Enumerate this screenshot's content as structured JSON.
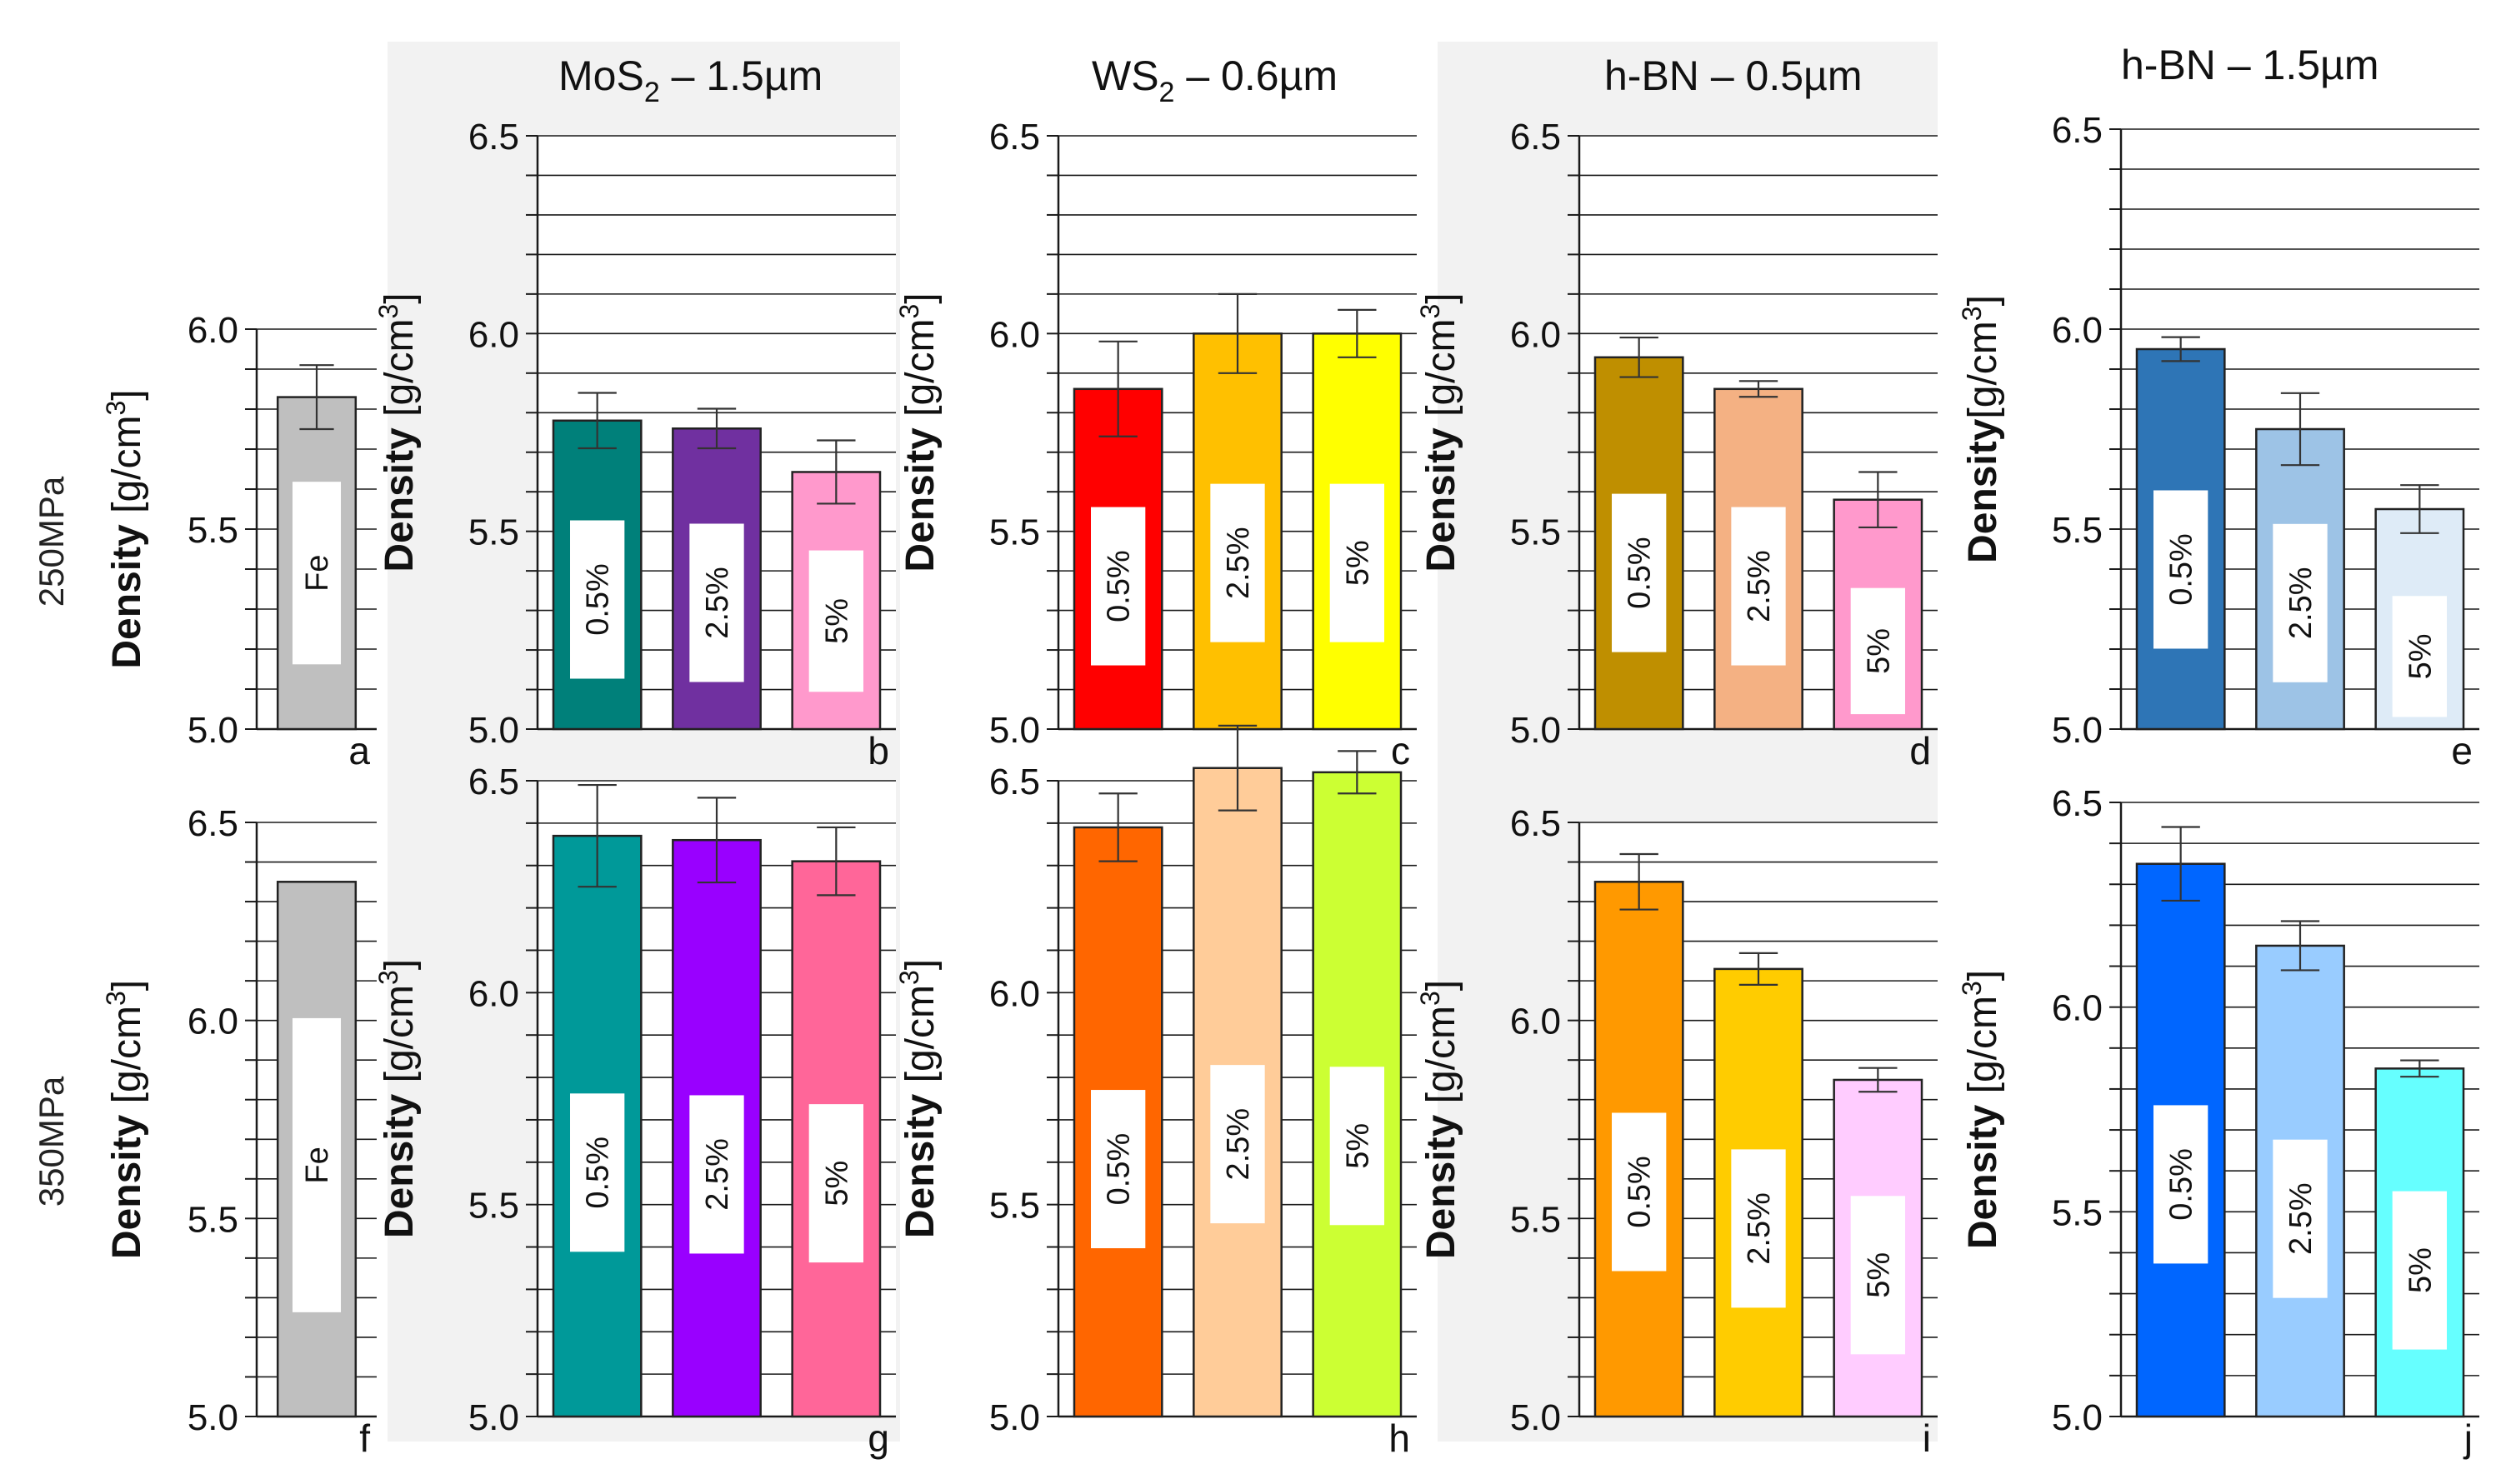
{
  "figure": {
    "row_labels": [
      "250MPa",
      "350MPa"
    ],
    "column_titles": [
      {
        "base": "MoS",
        "sub": "2",
        "rest": " – 1.5µm"
      },
      {
        "base": "WS",
        "sub": "2",
        "rest": " – 0.6µm"
      },
      {
        "base": "h-BN",
        "sub": "",
        "rest": " – 0.5µm"
      },
      {
        "base": "h-BN",
        "sub": "",
        "rest": " – 1.5µm"
      }
    ]
  },
  "chart_data": [
    {
      "type": "bar",
      "panel": "a",
      "ylabel": "Density [g/cm³]",
      "ylim": [
        5.0,
        6.0
      ],
      "ticks": [
        5.0,
        5.5,
        6.0
      ],
      "categories": [
        "Fe"
      ],
      "values": [
        5.83
      ],
      "errors": [
        0.08
      ],
      "colors": [
        "#bfbfbf"
      ]
    },
    {
      "type": "bar",
      "panel": "b",
      "ylabel": "Density [g/cm³]",
      "ylim": [
        5.0,
        6.5
      ],
      "ticks": [
        5.0,
        5.5,
        6.0,
        6.5
      ],
      "categories": [
        "0.5%",
        "2.5%",
        "5%"
      ],
      "values": [
        5.78,
        5.76,
        5.65
      ],
      "errors": [
        0.07,
        0.05,
        0.08
      ],
      "colors": [
        "#00807a",
        "#7030a0",
        "#ff99cc"
      ]
    },
    {
      "type": "bar",
      "panel": "c",
      "ylabel": "Density [g/cm³]",
      "ylim": [
        5.0,
        6.5
      ],
      "ticks": [
        5.0,
        5.5,
        6.0,
        6.5
      ],
      "categories": [
        "0.5%",
        "2.5%",
        "5%"
      ],
      "values": [
        5.86,
        6.0,
        6.0
      ],
      "errors": [
        0.12,
        0.1,
        0.06
      ],
      "colors": [
        "#ff0000",
        "#ffc000",
        "#ffff00"
      ]
    },
    {
      "type": "bar",
      "panel": "d",
      "ylabel": "Density [g/cm³]",
      "ylim": [
        5.0,
        6.5
      ],
      "ticks": [
        5.0,
        5.5,
        6.0,
        6.5
      ],
      "categories": [
        "0.5%",
        "2.5%",
        "5%"
      ],
      "values": [
        5.94,
        5.86,
        5.58
      ],
      "errors": [
        0.05,
        0.02,
        0.07
      ],
      "colors": [
        "#bf8f00",
        "#f4b183",
        "#ff99cc"
      ]
    },
    {
      "type": "bar",
      "panel": "e",
      "ylabel": "Density[g/cm³]",
      "ylim": [
        5.0,
        6.5
      ],
      "ticks": [
        5.0,
        5.5,
        6.0,
        6.5
      ],
      "categories": [
        "0.5%",
        "2.5%",
        "5%"
      ],
      "values": [
        5.95,
        5.75,
        5.55
      ],
      "errors": [
        0.03,
        0.09,
        0.06
      ],
      "colors": [
        "#2e75b6",
        "#9dc3e6",
        "#deebf7"
      ]
    },
    {
      "type": "bar",
      "panel": "f",
      "ylabel": "Density [g/cm³]",
      "ylim": [
        5.0,
        6.5
      ],
      "ticks": [
        5.0,
        5.5,
        6.0,
        6.5
      ],
      "categories": [
        "Fe"
      ],
      "values": [
        6.35
      ],
      "errors": [
        0.0
      ],
      "colors": [
        "#bfbfbf"
      ]
    },
    {
      "type": "bar",
      "panel": "g",
      "ylabel": "Density [g/cm³]",
      "ylim": [
        5.0,
        6.5
      ],
      "ticks": [
        5.0,
        5.5,
        6.0,
        6.5
      ],
      "categories": [
        "0.5%",
        "2.5%",
        "5%"
      ],
      "values": [
        6.37,
        6.36,
        6.31
      ],
      "errors": [
        0.12,
        0.1,
        0.08
      ],
      "colors": [
        "#009999",
        "#9900ff",
        "#ff6699"
      ]
    },
    {
      "type": "bar",
      "panel": "h",
      "ylabel": "Density [g/cm³]",
      "ylim": [
        5.0,
        6.5
      ],
      "ticks": [
        5.0,
        5.5,
        6.0,
        6.5
      ],
      "categories": [
        "0.5%",
        "2.5%",
        "5%"
      ],
      "values": [
        6.39,
        6.53,
        6.52
      ],
      "errors": [
        0.08,
        0.1,
        0.05
      ],
      "colors": [
        "#ff6600",
        "#ffcc99",
        "#ccff33"
      ]
    },
    {
      "type": "bar",
      "panel": "i",
      "ylabel": "Density [g/cm³]",
      "ylim": [
        5.0,
        6.5
      ],
      "ticks": [
        5.0,
        5.5,
        6.0,
        6.5
      ],
      "categories": [
        "0.5%",
        "2.5%",
        "5%"
      ],
      "values": [
        6.35,
        6.13,
        5.85
      ],
      "errors": [
        0.07,
        0.04,
        0.03
      ],
      "colors": [
        "#ff9900",
        "#ffcc00",
        "#ffccff"
      ]
    },
    {
      "type": "bar",
      "panel": "j",
      "ylabel": "Density [g/cm³]",
      "ylim": [
        5.0,
        6.5
      ],
      "ticks": [
        5.0,
        5.5,
        6.0,
        6.5
      ],
      "categories": [
        "0.5%",
        "2.5%",
        "5%"
      ],
      "values": [
        6.35,
        6.15,
        5.85
      ],
      "errors": [
        0.09,
        0.06,
        0.02
      ],
      "colors": [
        "#0066ff",
        "#99ccff",
        "#66ffff"
      ]
    }
  ]
}
